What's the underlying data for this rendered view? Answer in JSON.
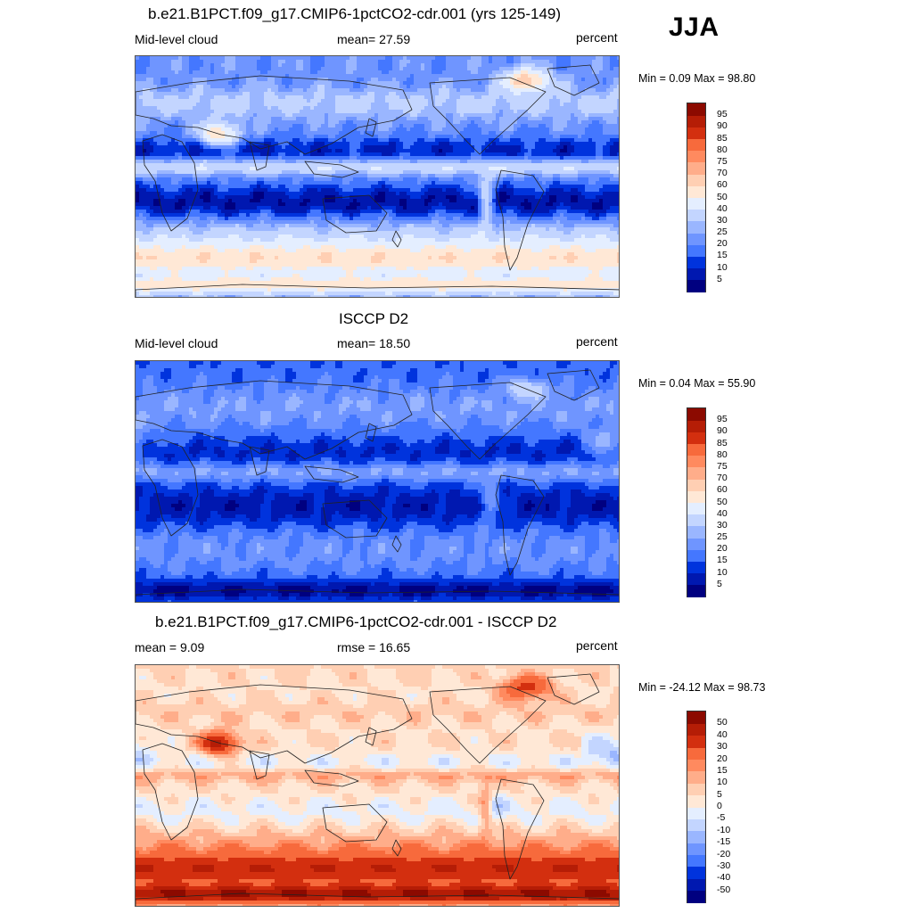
{
  "season": "JJA",
  "colors": {
    "full_scale": [
      "#000080",
      "#0018b0",
      "#0033dd",
      "#2255ee",
      "#4477ff",
      "#6f95ff",
      "#9ab6ff",
      "#c3d5ff",
      "#e4eeff",
      "#ffffff",
      "#ffe8d6",
      "#ffcfb3",
      "#ffad8a",
      "#ff8a5f",
      "#f76a3c",
      "#e84a21",
      "#d32f0f",
      "#b51d06",
      "#8c0a00"
    ],
    "diff_scale": [
      "#000080",
      "#0018b0",
      "#0033dd",
      "#2255ee",
      "#4477ff",
      "#6f95ff",
      "#9ab6ff",
      "#c3d5ff",
      "#e4eeff",
      "#ffffff",
      "#ffe8d6",
      "#ffcfb3",
      "#ffad8a",
      "#ff8a5f",
      "#f76a3c",
      "#e84a21",
      "#d32f0f",
      "#b51d06",
      "#8c0a00"
    ]
  },
  "chart_data": [
    {
      "type": "heatmap",
      "title": "b.e21.B1PCT.f09_g17.CMIP6-1pctCO2-cdr.001 (yrs 125-149)",
      "left_label": "Mid-level cloud",
      "center_label": "mean=  27.59",
      "right_label": "percent",
      "minmax": "Min =   0.09 Max =  98.80",
      "colorbar_levels": [
        "5",
        "10",
        "15",
        "20",
        "25",
        "30",
        "40",
        "50",
        "60",
        "70",
        "75",
        "80",
        "85",
        "90",
        "95"
      ],
      "field": "model"
    },
    {
      "type": "heatmap",
      "title": "ISCCP D2",
      "left_label": "Mid-level cloud",
      "center_label": "mean=  18.50",
      "right_label": "percent",
      "minmax": "Min =   0.04 Max =  55.90",
      "colorbar_levels": [
        "5",
        "10",
        "15",
        "20",
        "25",
        "30",
        "40",
        "50",
        "60",
        "70",
        "75",
        "80",
        "85",
        "90",
        "95"
      ],
      "field": "obs"
    },
    {
      "type": "heatmap",
      "title": "b.e21.B1PCT.f09_g17.CMIP6-1pctCO2-cdr.001 - ISCCP D2",
      "left_label": "mean =   9.09",
      "center_label": "rmse =  16.65",
      "right_label": "percent",
      "minmax": "Min = -24.12 Max =  98.73",
      "colorbar_levels": [
        "-50",
        "-40",
        "-30",
        "-20",
        "-15",
        "-10",
        "-5",
        "0",
        "5",
        "10",
        "15",
        "20",
        "30",
        "40",
        "50"
      ],
      "field": "diff"
    }
  ]
}
